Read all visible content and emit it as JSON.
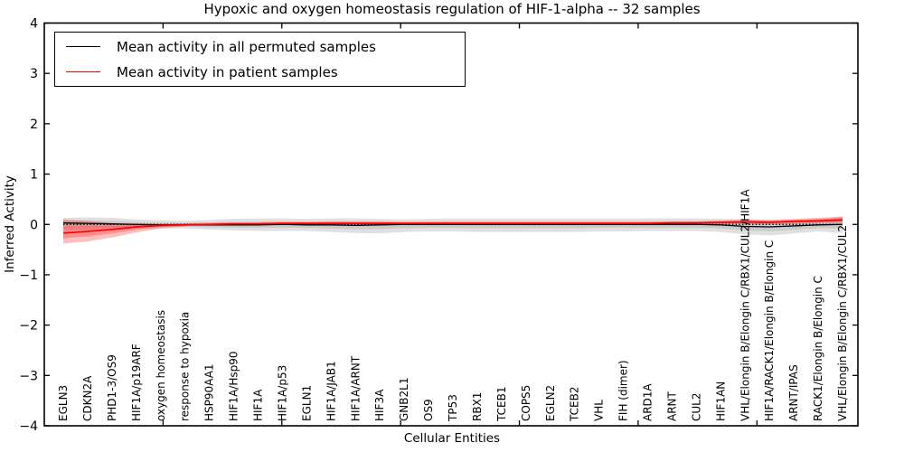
{
  "colors": {
    "permuted_line": "#000000",
    "patient_line": "#ff0000",
    "permuted_band": "#999999",
    "patient_band": "#ff0000",
    "axis": "#000000",
    "background": "#ffffff"
  },
  "chart_data": {
    "type": "line",
    "title": "Hypoxic and oxygen homeostasis regulation of HIF-1-alpha -- 32 samples",
    "xlabel": "Cellular Entities",
    "ylabel": "Inferred Activity",
    "ylim": [
      -4,
      4
    ],
    "yticks": [
      -4,
      -3,
      -2,
      -1,
      0,
      1,
      2,
      3,
      4
    ],
    "xlim": [
      0,
      34.25
    ],
    "x_numeric_ticks": [
      5,
      10,
      15,
      20,
      25,
      30
    ],
    "grid": false,
    "legend_position": "upper left",
    "zero_line": {
      "style": "dotted",
      "color": "#000000",
      "y": 0
    },
    "categories": [
      "EGLN3",
      "CDKN2A",
      "PHD1-3/OS9",
      "HIF1A/p19ARF",
      "oxygen homeostasis",
      "response to hypoxia",
      "HSP90AA1",
      "HIF1A/Hsp90",
      "HIF1A",
      "HIF1A/p53",
      "EGLN1",
      "HIF1A/JAB1",
      "HIF1A/ARNT",
      "HIF3A",
      "GNB2L1",
      "OS9",
      "TP53",
      "RBX1",
      "TCEB1",
      "COPS5",
      "EGLN2",
      "TCEB2",
      "VHL",
      "FIH (dimer)",
      "ARD1A",
      "ARNT",
      "CUL2",
      "HIF1AN",
      "VHL/Elongin B/Elongin C/RBX1/CUL2/HIF1A",
      "HIF1A/RACK1/Elongin B/Elongin C",
      "ARNT/IPAS",
      "RACK1/Elongin B/Elongin C",
      "VHL/Elongin B/Elongin C/RBX1/CUL2"
    ],
    "series": [
      {
        "name": "Mean activity in all permuted samples",
        "color": "#000000",
        "values": [
          0.03,
          0.02,
          0.01,
          0.0,
          -0.01,
          -0.01,
          -0.01,
          -0.01,
          -0.01,
          0.0,
          -0.01,
          -0.01,
          -0.02,
          -0.01,
          0.0,
          0.0,
          0.0,
          0.0,
          0.0,
          0.0,
          0.0,
          0.0,
          0.0,
          0.0,
          0.0,
          0.0,
          0.0,
          -0.01,
          -0.04,
          -0.05,
          -0.03,
          -0.01,
          0.0
        ],
        "band_upper": [
          0.13,
          0.14,
          0.13,
          0.1,
          0.08,
          0.07,
          0.09,
          0.11,
          0.12,
          0.12,
          0.11,
          0.12,
          0.12,
          0.11,
          0.1,
          0.11,
          0.12,
          0.12,
          0.12,
          0.12,
          0.12,
          0.12,
          0.12,
          0.12,
          0.12,
          0.12,
          0.12,
          0.11,
          0.1,
          0.08,
          0.09,
          0.11,
          0.15
        ],
        "band_lower": [
          -0.11,
          -0.12,
          -0.11,
          -0.09,
          -0.08,
          -0.08,
          -0.1,
          -0.12,
          -0.13,
          -0.13,
          -0.13,
          -0.15,
          -0.17,
          -0.18,
          -0.15,
          -0.14,
          -0.14,
          -0.15,
          -0.15,
          -0.15,
          -0.15,
          -0.15,
          -0.14,
          -0.14,
          -0.13,
          -0.13,
          -0.13,
          -0.15,
          -0.2,
          -0.22,
          -0.18,
          -0.14,
          -0.17
        ],
        "band_color": "#999999",
        "band_opacity": 0.3
      },
      {
        "name": "Mean activity in patient samples",
        "color": "#ff0000",
        "values": [
          -0.17,
          -0.14,
          -0.1,
          -0.05,
          -0.02,
          -0.01,
          0.0,
          0.01,
          0.01,
          0.02,
          0.02,
          0.02,
          0.02,
          0.02,
          0.02,
          0.02,
          0.02,
          0.02,
          0.02,
          0.02,
          0.02,
          0.02,
          0.02,
          0.02,
          0.02,
          0.03,
          0.03,
          0.04,
          0.05,
          0.04,
          0.06,
          0.07,
          0.09
        ],
        "band_upper": [
          0.1,
          0.07,
          0.03,
          0.01,
          0.01,
          0.02,
          0.03,
          0.04,
          0.04,
          0.05,
          0.05,
          0.06,
          0.06,
          0.06,
          0.05,
          0.05,
          0.05,
          0.05,
          0.05,
          0.05,
          0.05,
          0.05,
          0.05,
          0.05,
          0.05,
          0.06,
          0.06,
          0.08,
          0.1,
          0.09,
          0.11,
          0.13,
          0.16
        ],
        "band_lower": [
          -0.38,
          -0.34,
          -0.26,
          -0.16,
          -0.08,
          -0.04,
          -0.02,
          -0.01,
          -0.01,
          0.0,
          0.0,
          0.0,
          -0.01,
          -0.01,
          0.0,
          0.0,
          0.0,
          0.0,
          0.0,
          0.0,
          0.0,
          0.0,
          0.0,
          0.0,
          0.0,
          0.0,
          0.0,
          0.01,
          0.01,
          0.0,
          0.01,
          0.02,
          0.03
        ],
        "band_color": "#ff0000",
        "band_opacity": 0.25
      }
    ]
  }
}
